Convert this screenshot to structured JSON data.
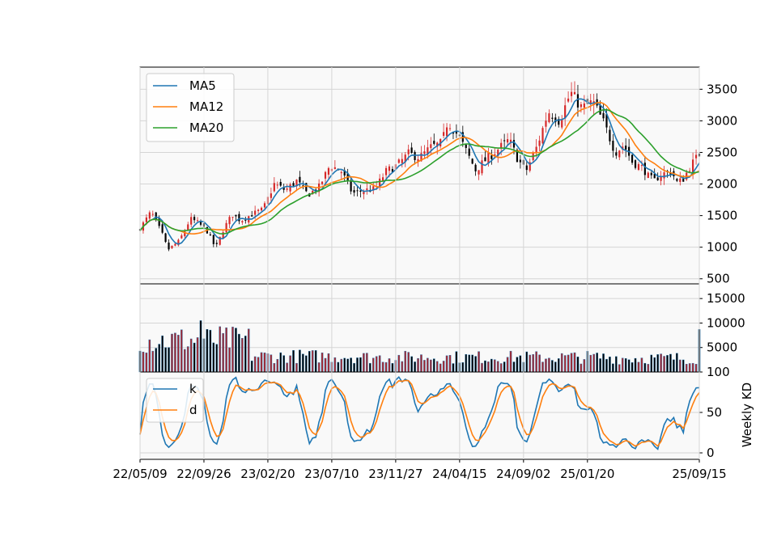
{
  "chart_data": {
    "type": "candlestick",
    "x_ticks": [
      "22/05/09",
      "22/09/26",
      "23/02/20",
      "23/07/10",
      "23/11/27",
      "24/04/15",
      "24/09/02",
      "25/01/20",
      "25/09/15"
    ],
    "num_weeks": 176,
    "price_panel": {
      "yticks": [
        500,
        1000,
        1500,
        2000,
        2500,
        3000,
        3500
      ],
      "ylim": [
        420,
        3850
      ],
      "legend": [
        "MA5",
        "MA12",
        "MA20"
      ],
      "legend_position": "upper-left",
      "anchors": [
        [
          0,
          1300
        ],
        [
          4,
          1560
        ],
        [
          8,
          1200
        ],
        [
          10,
          960
        ],
        [
          14,
          1100
        ],
        [
          18,
          1450
        ],
        [
          21,
          1380
        ],
        [
          24,
          1250
        ],
        [
          26,
          1080
        ],
        [
          27,
          980
        ],
        [
          30,
          1300
        ],
        [
          33,
          1520
        ],
        [
          36,
          1420
        ],
        [
          40,
          1520
        ],
        [
          44,
          1600
        ],
        [
          48,
          2000
        ],
        [
          52,
          1900
        ],
        [
          56,
          2050
        ],
        [
          60,
          1830
        ],
        [
          64,
          1950
        ],
        [
          68,
          2300
        ],
        [
          72,
          2200
        ],
        [
          76,
          1850
        ],
        [
          80,
          1900
        ],
        [
          84,
          1920
        ],
        [
          88,
          2200
        ],
        [
          92,
          2300
        ],
        [
          96,
          2480
        ],
        [
          100,
          2420
        ],
        [
          104,
          2580
        ],
        [
          108,
          2650
        ],
        [
          110,
          3000
        ],
        [
          114,
          2750
        ],
        [
          118,
          2400
        ],
        [
          120,
          2220
        ],
        [
          124,
          2400
        ],
        [
          128,
          2550
        ],
        [
          132,
          2700
        ],
        [
          135,
          2400
        ],
        [
          138,
          2200
        ],
        [
          142,
          2600
        ],
        [
          146,
          3150
        ],
        [
          150,
          3000
        ],
        [
          154,
          3450
        ],
        [
          158,
          3200
        ],
        [
          162,
          3300
        ],
        [
          166,
          2950
        ],
        [
          170,
          2500
        ],
        [
          173,
          2620
        ],
        [
          176,
          2350
        ],
        [
          180,
          2250
        ],
        [
          182,
          2100
        ],
        [
          184,
          2050
        ],
        [
          186,
          2150
        ],
        [
          190,
          2200
        ],
        [
          192,
          2030
        ],
        [
          194,
          2060
        ],
        [
          197,
          2300
        ],
        [
          200,
          2470
        ]
      ],
      "colors": {
        "up": "#d62728",
        "down": "#000000",
        "MA5": "#1f77b4",
        "MA12": "#ff7f0e",
        "MA20": "#2ca02c"
      }
    },
    "volume_panel": {
      "yticks": [
        5000,
        10000,
        15000
      ],
      "ylim": [
        0,
        18000
      ],
      "colors": {
        "up": "#a6262f",
        "down": "#000000",
        "edge": "#1f77b4"
      }
    },
    "kd_panel": {
      "ylabel": "Weekly KD",
      "yticks": [
        0,
        50,
        100
      ],
      "ylim": [
        -8,
        100
      ],
      "legend": [
        "k",
        "d"
      ],
      "legend_position": "upper-left",
      "colors": {
        "k": "#1f77b4",
        "d": "#ff7f0e"
      }
    },
    "grid": true
  }
}
